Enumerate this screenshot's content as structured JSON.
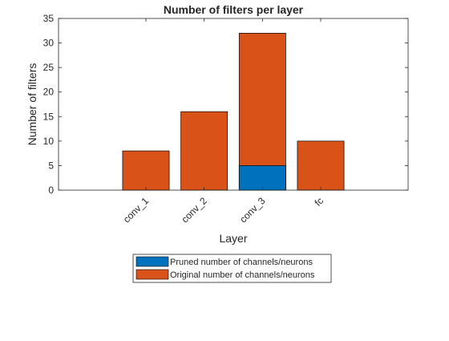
{
  "chart_data": {
    "type": "bar",
    "stacked": true,
    "title": "Number of filters per layer",
    "xlabel": "Layer",
    "ylabel": "Number of filters",
    "categories": [
      "conv_1",
      "conv_2",
      "conv_3",
      "fc"
    ],
    "category_count_with_empty_slots": 6,
    "ylim": [
      0,
      35
    ],
    "yticks": [
      0,
      5,
      10,
      15,
      20,
      25,
      30,
      35
    ],
    "grid": false,
    "legend_position": "bottom-outside",
    "series": [
      {
        "name": "Pruned number of channels/neurons",
        "color": "#0072BD",
        "values": [
          0,
          0,
          5,
          0
        ]
      },
      {
        "name": "Original number of channels/neurons",
        "color": "#D95319",
        "values": [
          8,
          16,
          32,
          10
        ]
      }
    ]
  }
}
